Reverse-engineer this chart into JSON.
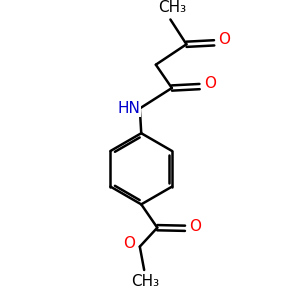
{
  "bg_color": "#ffffff",
  "bond_color": "#000000",
  "bond_width": 1.8,
  "atom_colors": {
    "O": "#ff0000",
    "N": "#0000cd",
    "C": "#000000"
  },
  "font_size_label": 11,
  "fig_width": 3.0,
  "fig_height": 3.0,
  "dpi": 100,
  "xlim": [
    0,
    10
  ],
  "ylim": [
    0,
    10
  ]
}
